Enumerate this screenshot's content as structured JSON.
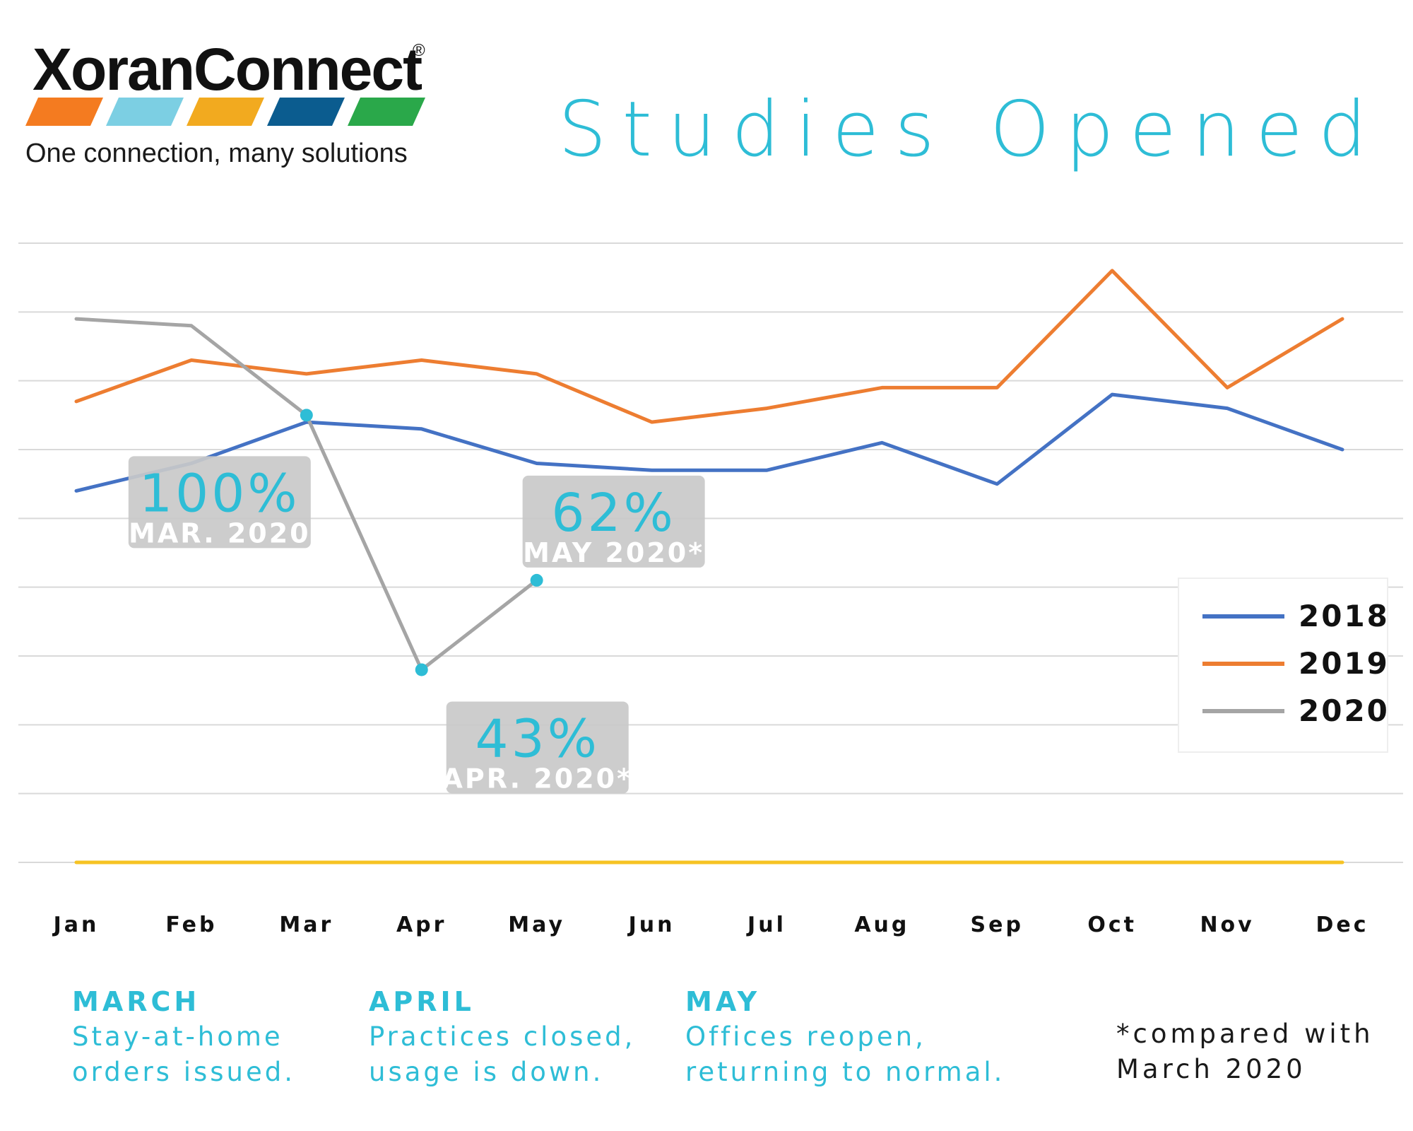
{
  "logo": {
    "name": "XoranConnect",
    "registered_mark": "®",
    "tagline": "One connection, many solutions",
    "stripe_colors": [
      "#f47b20",
      "#7ccfe3",
      "#f2aa1f",
      "#0b5c8f",
      "#2aa84a"
    ]
  },
  "title": "Studies Opened",
  "chart_data": {
    "type": "line",
    "title": "Studies Opened",
    "xlabel": "",
    "ylabel": "",
    "categories": [
      "Jan",
      "Feb",
      "Mar",
      "Apr",
      "May",
      "Jun",
      "Jul",
      "Aug",
      "Sep",
      "Oct",
      "Nov",
      "Dec"
    ],
    "ylim": [
      0,
      9
    ],
    "y_axis_labels_shown": false,
    "grid": "horizontal",
    "gridline_count": 10,
    "legend_position": "right",
    "series": [
      {
        "name": "2018",
        "color": "#4472c4",
        "values": [
          5.4,
          5.8,
          6.4,
          6.3,
          5.8,
          5.7,
          5.7,
          6.1,
          5.5,
          6.8,
          6.6,
          6.0
        ]
      },
      {
        "name": "2019",
        "color": "#ed7d31",
        "values": [
          6.7,
          7.3,
          7.1,
          7.3,
          7.1,
          6.4,
          6.6,
          6.9,
          6.9,
          8.6,
          6.9,
          7.9
        ]
      },
      {
        "name": "2020",
        "color": "#a5a5a5",
        "values": [
          7.9,
          7.8,
          6.5,
          2.8,
          4.1,
          null,
          null,
          null,
          null,
          null,
          null,
          null
        ]
      },
      {
        "name": "",
        "color": "#f6c324",
        "values": [
          0.0,
          0.0,
          0.0,
          0.0,
          0.0,
          0.0,
          0.0,
          0.0,
          0.0,
          0.0,
          0.0,
          0.0
        ]
      }
    ],
    "marker_color": "#2ebdd6",
    "callouts": [
      {
        "value": "100%",
        "label": "MAR. 2020",
        "category": "Mar"
      },
      {
        "value": "43%",
        "label": "APR. 2020*",
        "category": "Apr"
      },
      {
        "value": "62%",
        "label": "MAY 2020*",
        "category": "May"
      }
    ]
  },
  "notes": [
    {
      "heading": "MARCH",
      "lines": [
        "Stay-at-home",
        "orders issued."
      ]
    },
    {
      "heading": "APRIL",
      "lines": [
        "Practices closed,",
        "usage is down."
      ]
    },
    {
      "heading": "MAY",
      "lines": [
        "Offices reopen,",
        "returning to normal."
      ]
    }
  ],
  "footnote": {
    "lines": [
      "*compared with",
      "March 2020"
    ]
  },
  "colors": {
    "accent": "#2ebdd6",
    "callout_bg": "#c9c9c9",
    "grid": "#d9d9d9",
    "text_dark": "#1a1a1a"
  }
}
